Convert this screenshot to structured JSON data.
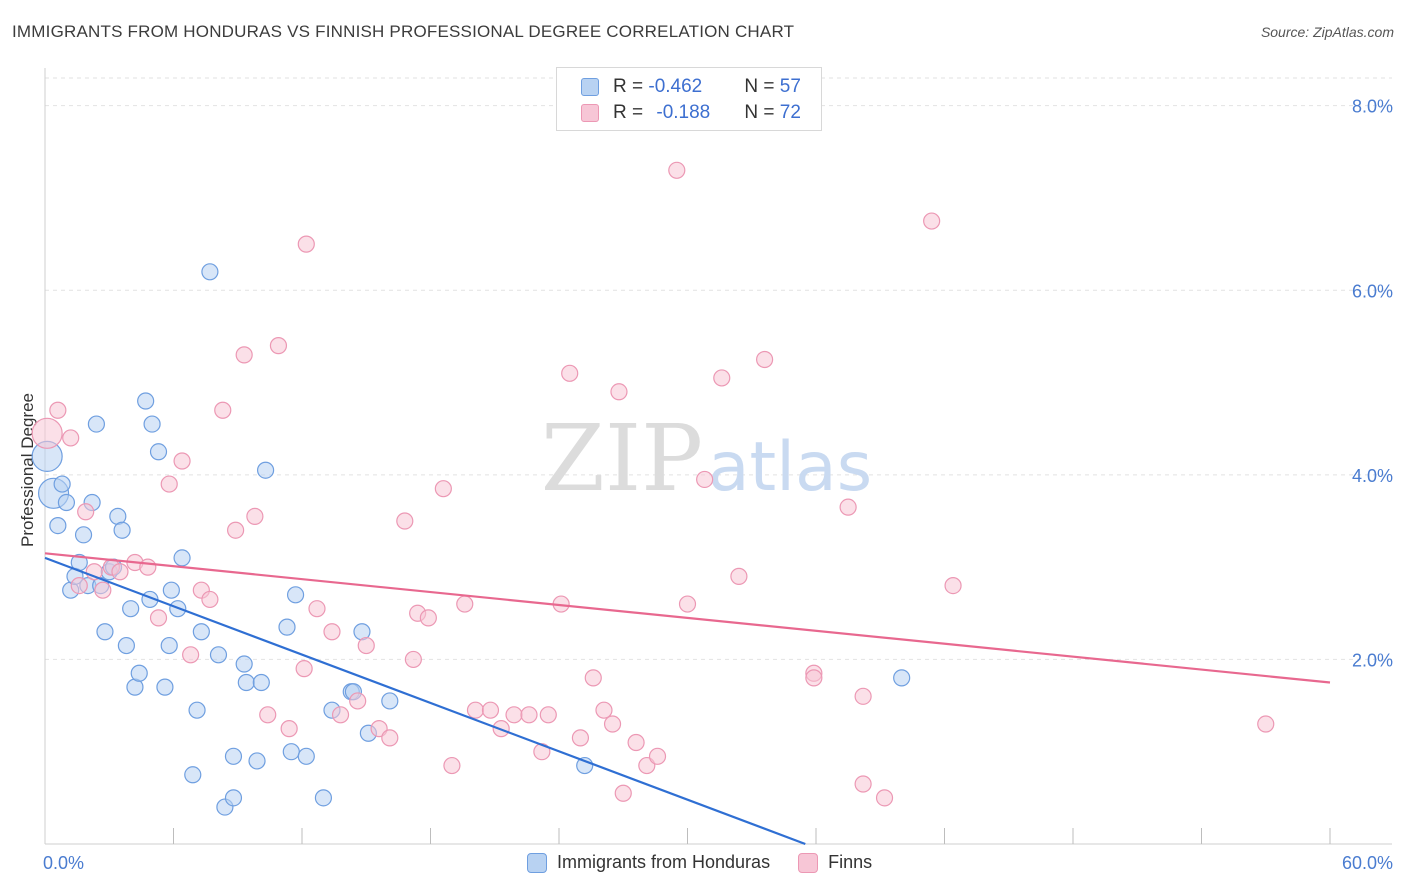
{
  "header": {
    "title": "IMMIGRANTS FROM HONDURAS VS FINNISH PROFESSIONAL DEGREE CORRELATION CHART",
    "source": "Source: ZipAtlas.com"
  },
  "watermark": {
    "zip": "ZIP",
    "atlas": "atlas"
  },
  "legend": {
    "r_label": "R = ",
    "n_label": "N = ",
    "series": [
      {
        "r": "-0.462",
        "n": "57"
      },
      {
        "r": "-0.188",
        "n": "72"
      }
    ]
  },
  "colors": {
    "blue_fill": "#b8d2f2",
    "blue_stroke": "#6f9fe0",
    "blue_line": "#2f6fd3",
    "pink_fill": "#f7c6d6",
    "pink_stroke": "#ec98b4",
    "pink_line": "#e8688f",
    "tick_text": "#4a7cd0",
    "grid": "#e2e2e2"
  },
  "chart_data": {
    "type": "scatter",
    "title": "IMMIGRANTS FROM HONDURAS VS FINNISH PROFESSIONAL DEGREE CORRELATION CHART",
    "xlabel": "",
    "ylabel": "Professional Degree",
    "xlim": [
      0,
      60
    ],
    "ylim": [
      0,
      8.3
    ],
    "x_tick_labels": [
      "0.0%",
      "60.0%"
    ],
    "y_ticks": [
      {
        "value": 2,
        "label": "2.0%"
      },
      {
        "value": 4,
        "label": "4.0%"
      },
      {
        "value": 6,
        "label": "6.0%"
      },
      {
        "value": 8,
        "label": "8.0%"
      }
    ],
    "series": [
      {
        "name": "Immigrants from Honduras",
        "color": "#6f9fe0",
        "r": -0.462,
        "n": 57,
        "trendline": {
          "x": [
            0,
            35.5
          ],
          "y": [
            3.1,
            0.0
          ]
        },
        "points": [
          [
            0.1,
            4.2
          ],
          [
            0.4,
            3.8
          ],
          [
            0.6,
            3.45
          ],
          [
            0.8,
            3.9
          ],
          [
            1.0,
            3.7
          ],
          [
            1.2,
            2.75
          ],
          [
            1.4,
            2.9
          ],
          [
            1.6,
            3.05
          ],
          [
            1.8,
            3.35
          ],
          [
            2.0,
            2.8
          ],
          [
            2.2,
            3.7
          ],
          [
            2.4,
            4.55
          ],
          [
            2.6,
            2.8
          ],
          [
            2.8,
            2.3
          ],
          [
            3.0,
            2.95
          ],
          [
            3.2,
            3.0
          ],
          [
            3.4,
            3.55
          ],
          [
            3.6,
            3.4
          ],
          [
            3.8,
            2.15
          ],
          [
            4.0,
            2.55
          ],
          [
            4.2,
            1.7
          ],
          [
            4.4,
            1.85
          ],
          [
            4.7,
            4.8
          ],
          [
            4.9,
            2.65
          ],
          [
            5.0,
            4.55
          ],
          [
            5.3,
            4.25
          ],
          [
            5.6,
            1.7
          ],
          [
            5.8,
            2.15
          ],
          [
            5.9,
            2.75
          ],
          [
            6.2,
            2.55
          ],
          [
            6.4,
            3.1
          ],
          [
            6.9,
            0.75
          ],
          [
            7.1,
            1.45
          ],
          [
            7.3,
            2.3
          ],
          [
            7.7,
            6.2
          ],
          [
            8.1,
            2.05
          ],
          [
            8.4,
            0.4
          ],
          [
            8.8,
            0.95
          ],
          [
            8.8,
            0.5
          ],
          [
            9.3,
            1.95
          ],
          [
            9.4,
            1.75
          ],
          [
            9.9,
            0.9
          ],
          [
            10.1,
            1.75
          ],
          [
            10.3,
            4.05
          ],
          [
            11.3,
            2.35
          ],
          [
            11.5,
            1.0
          ],
          [
            11.7,
            2.7
          ],
          [
            12.2,
            0.95
          ],
          [
            13.0,
            0.5
          ],
          [
            13.4,
            1.45
          ],
          [
            14.3,
            1.65
          ],
          [
            14.4,
            1.65
          ],
          [
            14.8,
            2.3
          ],
          [
            15.1,
            1.2
          ],
          [
            16.1,
            1.55
          ],
          [
            25.2,
            0.85
          ],
          [
            40.0,
            1.8
          ]
        ]
      },
      {
        "name": "Finns",
        "color": "#ec98b4",
        "r": -0.188,
        "n": 72,
        "trendline": {
          "x": [
            0,
            60
          ],
          "y": [
            3.15,
            1.75
          ]
        },
        "points": [
          [
            0.1,
            4.45
          ],
          [
            0.6,
            4.7
          ],
          [
            1.2,
            4.4
          ],
          [
            1.6,
            2.8
          ],
          [
            1.9,
            3.6
          ],
          [
            2.3,
            2.95
          ],
          [
            2.7,
            2.75
          ],
          [
            3.1,
            3.0
          ],
          [
            3.5,
            2.95
          ],
          [
            4.2,
            3.05
          ],
          [
            4.8,
            3.0
          ],
          [
            5.3,
            2.45
          ],
          [
            5.8,
            3.9
          ],
          [
            6.4,
            4.15
          ],
          [
            6.8,
            2.05
          ],
          [
            7.3,
            2.75
          ],
          [
            7.7,
            2.65
          ],
          [
            8.3,
            4.7
          ],
          [
            8.9,
            3.4
          ],
          [
            9.3,
            5.3
          ],
          [
            9.8,
            3.55
          ],
          [
            10.4,
            1.4
          ],
          [
            10.9,
            5.4
          ],
          [
            11.4,
            1.25
          ],
          [
            12.1,
            1.9
          ],
          [
            12.2,
            6.5
          ],
          [
            12.7,
            2.55
          ],
          [
            13.4,
            2.3
          ],
          [
            13.8,
            1.4
          ],
          [
            14.6,
            1.55
          ],
          [
            15.0,
            2.15
          ],
          [
            15.6,
            1.25
          ],
          [
            16.1,
            1.15
          ],
          [
            16.8,
            3.5
          ],
          [
            17.2,
            2.0
          ],
          [
            17.4,
            2.5
          ],
          [
            17.9,
            2.45
          ],
          [
            18.6,
            3.85
          ],
          [
            19.0,
            0.85
          ],
          [
            19.6,
            2.6
          ],
          [
            20.1,
            1.45
          ],
          [
            20.8,
            1.45
          ],
          [
            21.3,
            1.25
          ],
          [
            21.9,
            1.4
          ],
          [
            22.6,
            1.4
          ],
          [
            23.2,
            1.0
          ],
          [
            23.5,
            1.4
          ],
          [
            24.1,
            2.6
          ],
          [
            24.5,
            5.1
          ],
          [
            25.0,
            1.15
          ],
          [
            25.6,
            1.8
          ],
          [
            26.1,
            1.45
          ],
          [
            26.5,
            1.3
          ],
          [
            26.8,
            4.9
          ],
          [
            27.0,
            0.55
          ],
          [
            27.6,
            1.1
          ],
          [
            28.1,
            0.85
          ],
          [
            28.6,
            0.95
          ],
          [
            29.5,
            7.3
          ],
          [
            30.0,
            2.6
          ],
          [
            30.8,
            3.95
          ],
          [
            31.6,
            5.05
          ],
          [
            32.4,
            2.9
          ],
          [
            33.6,
            5.25
          ],
          [
            35.9,
            1.85
          ],
          [
            35.9,
            1.8
          ],
          [
            37.5,
            3.65
          ],
          [
            38.2,
            1.6
          ],
          [
            38.2,
            0.65
          ],
          [
            39.2,
            0.5
          ],
          [
            41.4,
            6.75
          ],
          [
            42.4,
            2.8
          ],
          [
            57.0,
            1.3
          ]
        ]
      }
    ]
  }
}
